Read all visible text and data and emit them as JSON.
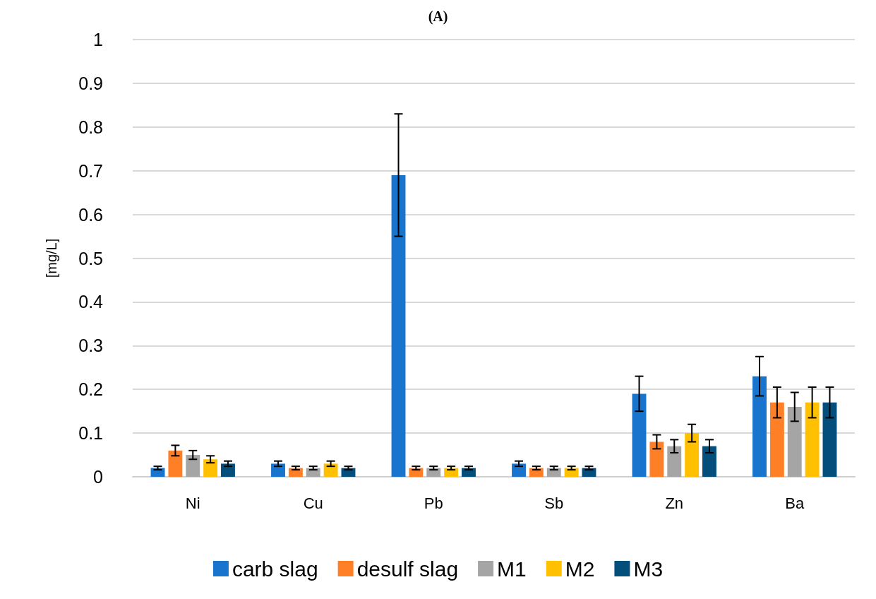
{
  "chart_data": {
    "type": "bar",
    "title": "(A)",
    "ylabel": "[mg/L]",
    "categories": [
      "Ni",
      "Cu",
      "Pb",
      "Sb",
      "Zn",
      "Ba"
    ],
    "series": [
      {
        "name": "carb slag",
        "color": "#1874cd",
        "values": [
          0.02,
          0.03,
          0.69,
          0.03,
          0.19,
          0.23
        ],
        "errors": [
          0.004,
          0.006,
          0.14,
          0.006,
          0.04,
          0.045
        ]
      },
      {
        "name": "desulf slag",
        "color": "#ff7f27",
        "values": [
          0.06,
          0.02,
          0.02,
          0.02,
          0.08,
          0.17
        ],
        "errors": [
          0.012,
          0.004,
          0.004,
          0.004,
          0.016,
          0.035
        ]
      },
      {
        "name": "M1",
        "color": "#a5a5a5",
        "values": [
          0.05,
          0.02,
          0.02,
          0.02,
          0.07,
          0.16
        ],
        "errors": [
          0.01,
          0.004,
          0.004,
          0.004,
          0.015,
          0.033
        ]
      },
      {
        "name": "M2",
        "color": "#ffc000",
        "values": [
          0.04,
          0.03,
          0.02,
          0.02,
          0.1,
          0.17
        ],
        "errors": [
          0.008,
          0.006,
          0.004,
          0.004,
          0.02,
          0.035
        ]
      },
      {
        "name": "M3",
        "color": "#034e7b",
        "values": [
          0.03,
          0.02,
          0.02,
          0.02,
          0.07,
          0.17
        ],
        "errors": [
          0.006,
          0.004,
          0.004,
          0.004,
          0.015,
          0.035
        ]
      }
    ],
    "ylim": [
      0,
      1
    ],
    "yticks": [
      0,
      0.1,
      0.2,
      0.3,
      0.4,
      0.5,
      0.6,
      0.7,
      0.8,
      0.9,
      1
    ],
    "grid": "y",
    "legend": "bottom"
  }
}
